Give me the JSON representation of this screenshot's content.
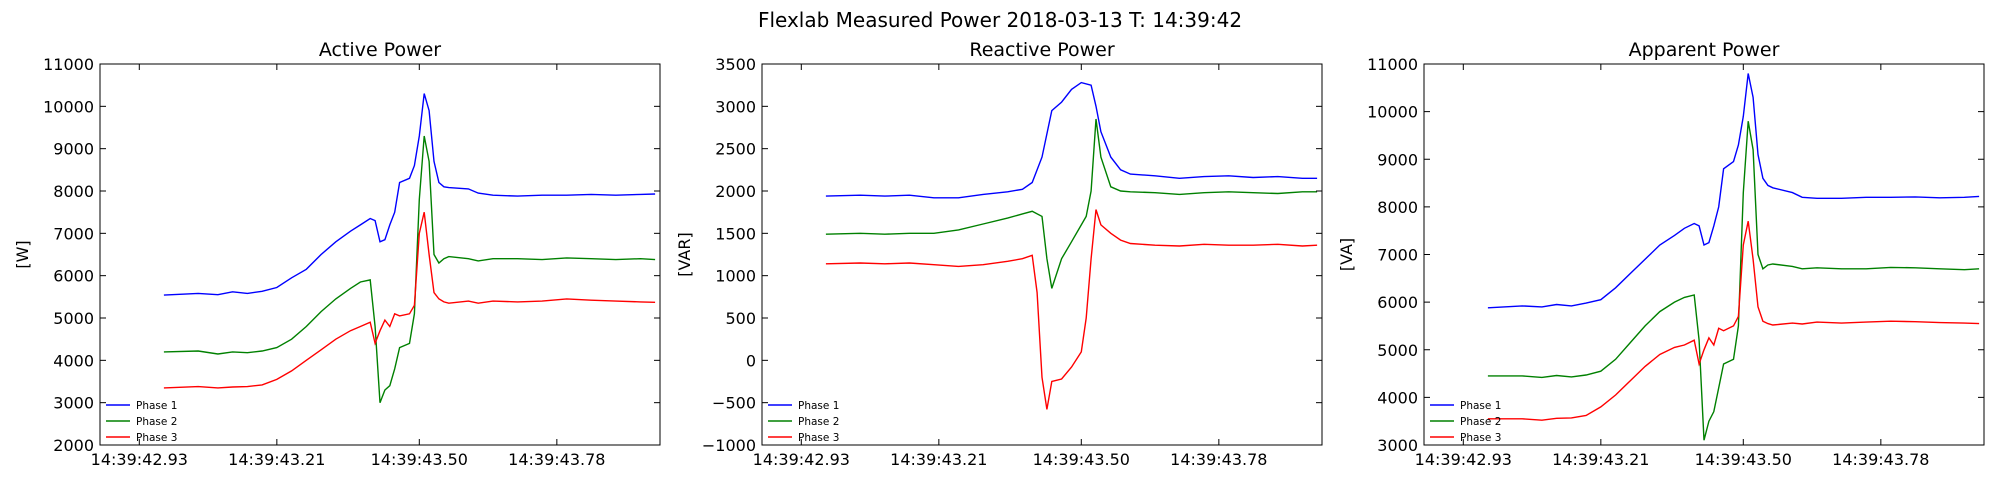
{
  "figure": {
    "suptitle": "Flexlab Measured Power 2018-03-13 T: 14:39:42"
  },
  "chart_data": [
    {
      "type": "line",
      "title": "Active Power",
      "ylabel": "[W]",
      "xlabel": "",
      "xlim": [
        42.85,
        43.99
      ],
      "ylim": [
        2000,
        11000
      ],
      "yticks": [
        2000,
        3000,
        4000,
        5000,
        6000,
        7000,
        8000,
        9000,
        10000,
        11000
      ],
      "xticks": [
        42.93,
        43.21,
        43.5,
        43.78
      ],
      "xtick_labels": [
        "14:39:42.93",
        "14:39:43.21",
        "14:39:43.50",
        "14:39:43.78"
      ],
      "grid": false,
      "legend_position": "bottom-left",
      "series": [
        {
          "name": "Phase 1",
          "color": "#0000ff",
          "x": [
            42.98,
            43.05,
            43.09,
            43.12,
            43.15,
            43.18,
            43.21,
            43.24,
            43.27,
            43.3,
            43.33,
            43.36,
            43.38,
            43.4,
            43.41,
            43.42,
            43.43,
            43.44,
            43.45,
            43.46,
            43.48,
            43.49,
            43.5,
            43.51,
            43.52,
            43.53,
            43.54,
            43.55,
            43.56,
            43.6,
            43.62,
            43.65,
            43.7,
            43.75,
            43.8,
            43.85,
            43.9,
            43.95,
            43.98
          ],
          "y": [
            5540,
            5580,
            5550,
            5620,
            5580,
            5630,
            5720,
            5950,
            6150,
            6500,
            6800,
            7050,
            7200,
            7350,
            7300,
            6800,
            6850,
            7200,
            7500,
            8200,
            8300,
            8600,
            9300,
            10300,
            9900,
            8700,
            8200,
            8100,
            8080,
            8050,
            7950,
            7900,
            7880,
            7900,
            7900,
            7920,
            7900,
            7920,
            7930
          ]
        },
        {
          "name": "Phase 2",
          "color": "#008000",
          "x": [
            42.98,
            43.05,
            43.09,
            43.12,
            43.15,
            43.18,
            43.21,
            43.24,
            43.27,
            43.3,
            43.33,
            43.36,
            43.38,
            43.4,
            43.41,
            43.42,
            43.43,
            43.44,
            43.45,
            43.46,
            43.48,
            43.49,
            43.5,
            43.51,
            43.52,
            43.53,
            43.54,
            43.55,
            43.56,
            43.6,
            43.62,
            43.65,
            43.7,
            43.75,
            43.8,
            43.85,
            43.9,
            43.95,
            43.98
          ],
          "y": [
            4200,
            4220,
            4150,
            4200,
            4180,
            4220,
            4300,
            4500,
            4800,
            5150,
            5450,
            5700,
            5850,
            5900,
            4800,
            3000,
            3300,
            3400,
            3800,
            4300,
            4400,
            5100,
            7800,
            9300,
            8700,
            6500,
            6300,
            6400,
            6450,
            6400,
            6350,
            6400,
            6400,
            6380,
            6420,
            6400,
            6380,
            6400,
            6380
          ]
        },
        {
          "name": "Phase 3",
          "color": "#ff0000",
          "x": [
            42.98,
            43.05,
            43.09,
            43.12,
            43.15,
            43.18,
            43.21,
            43.24,
            43.27,
            43.3,
            43.33,
            43.36,
            43.38,
            43.4,
            43.41,
            43.42,
            43.43,
            43.44,
            43.45,
            43.46,
            43.48,
            43.49,
            43.5,
            43.51,
            43.52,
            43.53,
            43.54,
            43.55,
            43.56,
            43.6,
            43.62,
            43.65,
            43.7,
            43.75,
            43.8,
            43.85,
            43.9,
            43.95,
            43.98
          ],
          "y": [
            3350,
            3380,
            3350,
            3370,
            3380,
            3420,
            3550,
            3750,
            4000,
            4250,
            4500,
            4700,
            4800,
            4900,
            4400,
            4700,
            4950,
            4800,
            5100,
            5050,
            5100,
            5300,
            7000,
            7500,
            6500,
            5600,
            5450,
            5380,
            5350,
            5400,
            5350,
            5400,
            5380,
            5400,
            5450,
            5420,
            5400,
            5380,
            5370
          ]
        }
      ]
    },
    {
      "type": "line",
      "title": "Reactive Power",
      "ylabel": "[VAR]",
      "xlabel": "",
      "xlim": [
        42.85,
        43.99
      ],
      "ylim": [
        -1000,
        3500
      ],
      "yticks": [
        -1000,
        -500,
        0,
        500,
        1000,
        1500,
        2000,
        2500,
        3000,
        3500
      ],
      "xticks": [
        42.93,
        43.21,
        43.5,
        43.78
      ],
      "xtick_labels": [
        "14:39:42.93",
        "14:39:43.21",
        "14:39:43.50",
        "14:39:43.78"
      ],
      "grid": false,
      "legend_position": "bottom-left",
      "series": [
        {
          "name": "Phase 1",
          "color": "#0000ff",
          "x": [
            42.98,
            43.05,
            43.1,
            43.15,
            43.2,
            43.25,
            43.3,
            43.35,
            43.38,
            43.4,
            43.42,
            43.44,
            43.46,
            43.48,
            43.5,
            43.52,
            43.53,
            43.54,
            43.56,
            43.58,
            43.6,
            43.65,
            43.7,
            43.75,
            43.8,
            43.85,
            43.9,
            43.95,
            43.98
          ],
          "y": [
            1940,
            1950,
            1940,
            1950,
            1920,
            1920,
            1960,
            1990,
            2020,
            2100,
            2400,
            2950,
            3050,
            3200,
            3280,
            3250,
            3000,
            2700,
            2400,
            2250,
            2200,
            2180,
            2150,
            2170,
            2180,
            2160,
            2170,
            2150,
            2150
          ]
        },
        {
          "name": "Phase 2",
          "color": "#008000",
          "x": [
            42.98,
            43.05,
            43.1,
            43.15,
            43.2,
            43.25,
            43.3,
            43.35,
            43.38,
            43.4,
            43.42,
            43.43,
            43.44,
            43.46,
            43.48,
            43.5,
            43.51,
            43.52,
            43.53,
            43.54,
            43.56,
            43.58,
            43.6,
            43.65,
            43.7,
            43.75,
            43.8,
            43.85,
            43.9,
            43.95,
            43.98
          ],
          "y": [
            1490,
            1500,
            1490,
            1500,
            1500,
            1540,
            1610,
            1680,
            1730,
            1760,
            1700,
            1200,
            850,
            1200,
            1400,
            1600,
            1700,
            2000,
            2850,
            2400,
            2050,
            2000,
            1990,
            1980,
            1960,
            1980,
            1990,
            1980,
            1970,
            1990,
            1990
          ]
        },
        {
          "name": "Phase 3",
          "color": "#ff0000",
          "x": [
            42.98,
            43.05,
            43.1,
            43.15,
            43.2,
            43.25,
            43.3,
            43.35,
            43.38,
            43.4,
            43.41,
            43.42,
            43.43,
            43.44,
            43.46,
            43.48,
            43.5,
            43.51,
            43.52,
            43.53,
            43.54,
            43.56,
            43.58,
            43.6,
            43.65,
            43.7,
            43.75,
            43.8,
            43.85,
            43.9,
            43.95,
            43.98
          ],
          "y": [
            1140,
            1150,
            1140,
            1150,
            1130,
            1110,
            1130,
            1170,
            1200,
            1240,
            800,
            -200,
            -580,
            -250,
            -220,
            -80,
            100,
            500,
            1200,
            1780,
            1600,
            1500,
            1420,
            1380,
            1360,
            1350,
            1370,
            1360,
            1360,
            1370,
            1350,
            1360
          ]
        }
      ]
    },
    {
      "type": "line",
      "title": "Apparent Power",
      "ylabel": "[VA]",
      "xlabel": "",
      "xlim": [
        42.85,
        43.99
      ],
      "ylim": [
        3000,
        11000
      ],
      "yticks": [
        3000,
        4000,
        5000,
        6000,
        7000,
        8000,
        9000,
        10000,
        11000
      ],
      "xticks": [
        42.93,
        43.21,
        43.5,
        43.78
      ],
      "xtick_labels": [
        "14:39:42.93",
        "14:39:43.21",
        "14:39:43.50",
        "14:39:43.78"
      ],
      "grid": false,
      "legend_position": "bottom-left",
      "series": [
        {
          "name": "Phase 1",
          "color": "#0000ff",
          "x": [
            42.98,
            43.05,
            43.09,
            43.12,
            43.15,
            43.18,
            43.21,
            43.24,
            43.27,
            43.3,
            43.33,
            43.36,
            43.38,
            43.4,
            43.41,
            43.42,
            43.43,
            43.44,
            43.45,
            43.46,
            43.48,
            43.49,
            43.5,
            43.51,
            43.52,
            43.53,
            43.54,
            43.55,
            43.56,
            43.6,
            43.62,
            43.65,
            43.7,
            43.75,
            43.8,
            43.85,
            43.9,
            43.95,
            43.98
          ],
          "y": [
            5880,
            5920,
            5900,
            5950,
            5920,
            5980,
            6050,
            6300,
            6600,
            6900,
            7200,
            7400,
            7550,
            7650,
            7600,
            7200,
            7250,
            7600,
            8000,
            8800,
            8950,
            9300,
            9900,
            10800,
            10300,
            9100,
            8600,
            8450,
            8400,
            8300,
            8200,
            8180,
            8180,
            8200,
            8200,
            8210,
            8190,
            8200,
            8220
          ]
        },
        {
          "name": "Phase 2",
          "color": "#008000",
          "x": [
            42.98,
            43.05,
            43.09,
            43.12,
            43.15,
            43.18,
            43.21,
            43.24,
            43.27,
            43.3,
            43.33,
            43.36,
            43.38,
            43.4,
            43.41,
            43.42,
            43.43,
            43.44,
            43.45,
            43.46,
            43.48,
            43.49,
            43.5,
            43.51,
            43.52,
            43.53,
            43.54,
            43.55,
            43.56,
            43.6,
            43.62,
            43.65,
            43.7,
            43.75,
            43.8,
            43.85,
            43.9,
            43.95,
            43.98
          ],
          "y": [
            4450,
            4450,
            4420,
            4460,
            4430,
            4470,
            4550,
            4800,
            5150,
            5500,
            5800,
            6000,
            6100,
            6150,
            5200,
            3100,
            3500,
            3700,
            4200,
            4700,
            4800,
            5500,
            8300,
            9800,
            9200,
            7000,
            6700,
            6780,
            6800,
            6750,
            6700,
            6720,
            6700,
            6700,
            6730,
            6720,
            6700,
            6680,
            6700
          ]
        },
        {
          "name": "Phase 3",
          "color": "#ff0000",
          "x": [
            42.98,
            43.05,
            43.09,
            43.12,
            43.15,
            43.18,
            43.21,
            43.24,
            43.27,
            43.3,
            43.33,
            43.36,
            43.38,
            43.4,
            43.41,
            43.42,
            43.43,
            43.44,
            43.45,
            43.46,
            43.48,
            43.49,
            43.5,
            43.51,
            43.52,
            43.53,
            43.54,
            43.55,
            43.56,
            43.6,
            43.62,
            43.65,
            43.7,
            43.75,
            43.8,
            43.85,
            43.9,
            43.95,
            43.98
          ],
          "y": [
            3550,
            3550,
            3520,
            3560,
            3570,
            3620,
            3800,
            4050,
            4350,
            4650,
            4900,
            5050,
            5100,
            5200,
            4700,
            5000,
            5250,
            5100,
            5450,
            5400,
            5500,
            5700,
            7200,
            7700,
            6900,
            5900,
            5600,
            5550,
            5520,
            5560,
            5540,
            5580,
            5560,
            5580,
            5600,
            5590,
            5570,
            5560,
            5550
          ]
        }
      ]
    }
  ]
}
